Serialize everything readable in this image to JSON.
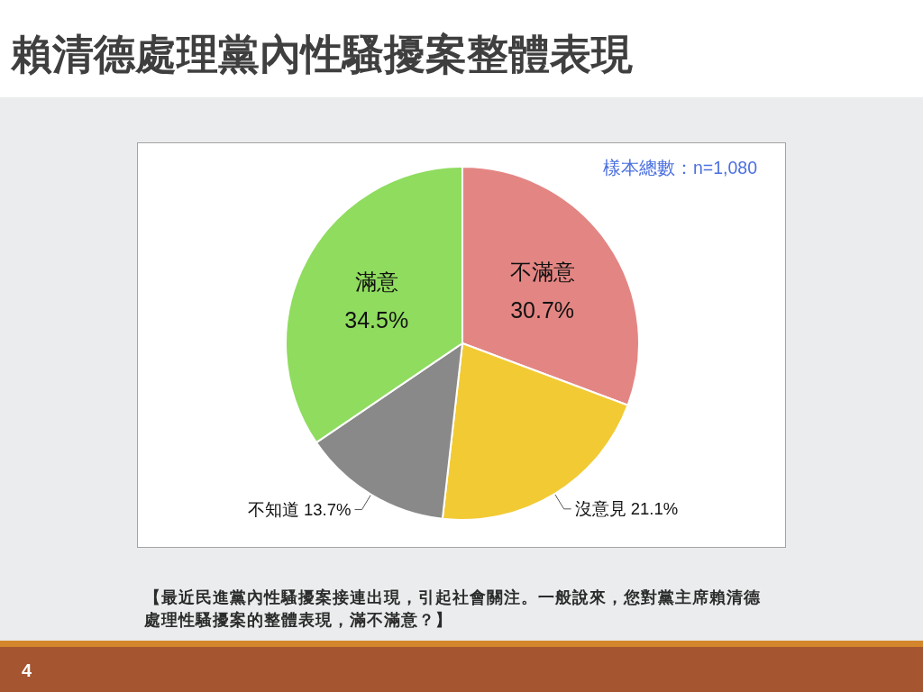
{
  "chart_data": {
    "type": "pie",
    "title": "賴清德處理黨內性騷擾案整體表現",
    "categories": [
      "不滿意",
      "沒意見",
      "不知道",
      "滿意"
    ],
    "values": [
      30.7,
      21.1,
      13.7,
      34.5
    ],
    "colors": [
      "#e38683",
      "#f2ca33",
      "#898989",
      "#8fdc5f"
    ],
    "value_labels": [
      "30.7%",
      "21.1%",
      "13.7%",
      "34.5%"
    ],
    "annotations": [
      "樣本總數：n=1,080",
      "【最近民進黨內性騷擾案接連出現，引起社會關注。一般說來，您對黨主席賴清德處理性騷擾案的整體表現，滿不滿意？】",
      "4"
    ]
  }
}
